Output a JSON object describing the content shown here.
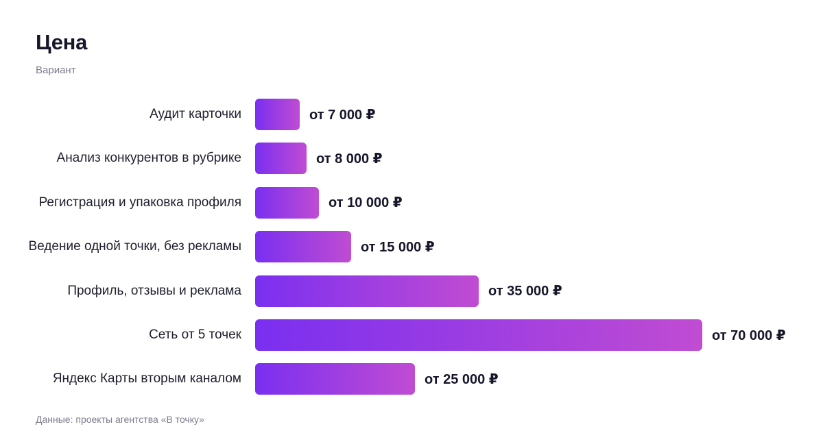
{
  "header": {
    "title": "Цена",
    "subtitle": "Вариант"
  },
  "footer": {
    "source": "Данные: проекты агентства «В точку»"
  },
  "colors": {
    "bar_start": "#7a2ff0",
    "bar_end": "#c04cd2"
  },
  "chart_data": {
    "type": "bar",
    "orientation": "horizontal",
    "title": "Цена",
    "subtitle": "Вариант",
    "categories": [
      "Аудит карточки",
      "Анализ конкурентов в рубрике",
      "Регистрация и упаковка профиля",
      "Ведение одной точки, без рекламы",
      "Профиль, отзывы и реклама",
      "Сеть от 5 точек",
      "Яндекс Карты вторым каналом"
    ],
    "values": [
      7000,
      8000,
      10000,
      15000,
      35000,
      70000,
      25000
    ],
    "value_labels": [
      "от 7 000 ₽",
      "от 8 000 ₽",
      "от 10 000 ₽",
      "от 15 000 ₽",
      "от 35 000 ₽",
      "от 70 000 ₽",
      "от 25 000 ₽"
    ],
    "xlim": [
      0,
      70000
    ],
    "grid": false,
    "legend": "none"
  }
}
